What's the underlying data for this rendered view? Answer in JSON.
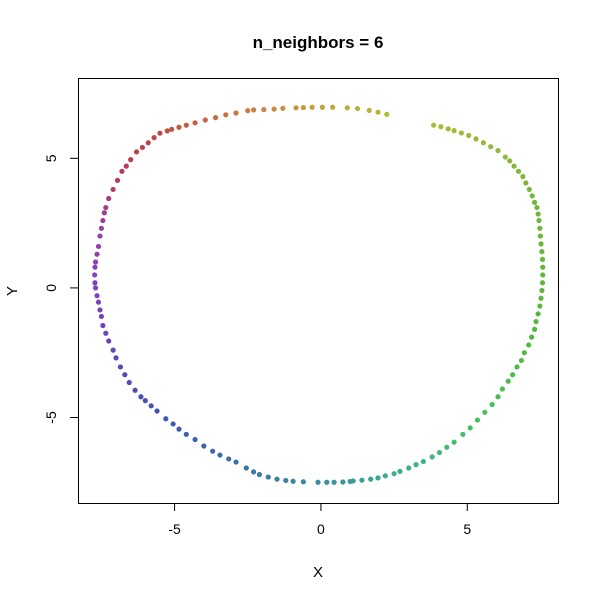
{
  "chart_data": {
    "type": "scatter",
    "title": "n_neighbors = 6",
    "xlabel": "X",
    "ylabel": "Y",
    "xlim": [
      -8.3,
      8.1
    ],
    "ylim": [
      -8.3,
      8.1
    ],
    "xticks": [
      -5,
      0,
      5
    ],
    "yticks": [
      -5,
      0,
      5
    ],
    "grid": false,
    "legend": "none",
    "color_mapping": "hue along the curve",
    "points": [
      {
        "x": 2.25,
        "y": 6.7,
        "color": "#b2bb34"
      },
      {
        "x": 1.95,
        "y": 6.78,
        "color": "#b5b636"
      },
      {
        "x": 1.65,
        "y": 6.85,
        "color": "#b8b337"
      },
      {
        "x": 1.25,
        "y": 6.92,
        "color": "#bbaf38"
      },
      {
        "x": 0.9,
        "y": 6.95,
        "color": "#beaa39"
      },
      {
        "x": 0.4,
        "y": 6.97,
        "color": "#c1a53a"
      },
      {
        "x": 0.05,
        "y": 6.97,
        "color": "#c3a13b"
      },
      {
        "x": -0.3,
        "y": 6.97,
        "color": "#c59c3c"
      },
      {
        "x": -0.6,
        "y": 6.96,
        "color": "#c7973d"
      },
      {
        "x": -0.85,
        "y": 6.95,
        "color": "#c8933e"
      },
      {
        "x": -1.3,
        "y": 6.93,
        "color": "#c98e3f"
      },
      {
        "x": -1.6,
        "y": 6.9,
        "color": "#ca8940"
      },
      {
        "x": -1.95,
        "y": 6.88,
        "color": "#cb8441"
      },
      {
        "x": -2.3,
        "y": 6.87,
        "color": "#cb7f42"
      },
      {
        "x": -2.5,
        "y": 6.84,
        "color": "#cb7a42"
      },
      {
        "x": -2.9,
        "y": 6.75,
        "color": "#ca7542"
      },
      {
        "x": -3.25,
        "y": 6.68,
        "color": "#c97043"
      },
      {
        "x": -3.6,
        "y": 6.57,
        "color": "#c76b43"
      },
      {
        "x": -3.95,
        "y": 6.48,
        "color": "#c66643"
      },
      {
        "x": -4.3,
        "y": 6.37,
        "color": "#c56143"
      },
      {
        "x": -4.6,
        "y": 6.28,
        "color": "#c45c43"
      },
      {
        "x": -4.85,
        "y": 6.2,
        "color": "#c35843"
      },
      {
        "x": -5.1,
        "y": 6.12,
        "color": "#c25444"
      },
      {
        "x": -5.25,
        "y": 6.06,
        "color": "#c15044"
      },
      {
        "x": -5.5,
        "y": 5.97,
        "color": "#c04c45"
      },
      {
        "x": -5.7,
        "y": 5.8,
        "color": "#bf4846"
      },
      {
        "x": -5.9,
        "y": 5.6,
        "color": "#be4547"
      },
      {
        "x": -6.1,
        "y": 5.42,
        "color": "#bd4249"
      },
      {
        "x": -6.3,
        "y": 5.25,
        "color": "#bc404b"
      },
      {
        "x": -6.5,
        "y": 4.95,
        "color": "#bb3e4f"
      },
      {
        "x": -6.65,
        "y": 4.7,
        "color": "#b93d53"
      },
      {
        "x": -6.8,
        "y": 4.5,
        "color": "#b83c58"
      },
      {
        "x": -6.95,
        "y": 4.15,
        "color": "#b53c5f"
      },
      {
        "x": -7.1,
        "y": 3.8,
        "color": "#b03d6a"
      },
      {
        "x": -7.25,
        "y": 3.45,
        "color": "#aa3e77"
      },
      {
        "x": -7.35,
        "y": 3.1,
        "color": "#a53f84"
      },
      {
        "x": -7.4,
        "y": 2.9,
        "color": "#a1408d"
      },
      {
        "x": -7.45,
        "y": 2.6,
        "color": "#9e4096"
      },
      {
        "x": -7.5,
        "y": 2.3,
        "color": "#9b409e"
      },
      {
        "x": -7.55,
        "y": 2.0,
        "color": "#9840a5"
      },
      {
        "x": -7.6,
        "y": 1.6,
        "color": "#9540ac"
      },
      {
        "x": -7.65,
        "y": 1.3,
        "color": "#9240b1"
      },
      {
        "x": -7.7,
        "y": 1.0,
        "color": "#8f40b5"
      },
      {
        "x": -7.72,
        "y": 0.8,
        "color": "#8c40b9"
      },
      {
        "x": -7.73,
        "y": 0.5,
        "color": "#8940bc"
      },
      {
        "x": -7.72,
        "y": 0.2,
        "color": "#8640be"
      },
      {
        "x": -7.7,
        "y": 0.0,
        "color": "#8340bf"
      },
      {
        "x": -7.65,
        "y": -0.3,
        "color": "#8041c0"
      },
      {
        "x": -7.6,
        "y": -0.55,
        "color": "#7c41c1"
      },
      {
        "x": -7.55,
        "y": -0.85,
        "color": "#7842c1"
      },
      {
        "x": -7.5,
        "y": -1.1,
        "color": "#7442c1"
      },
      {
        "x": -7.45,
        "y": -1.45,
        "color": "#7043c0"
      },
      {
        "x": -7.35,
        "y": -1.75,
        "color": "#6c44bf"
      },
      {
        "x": -7.25,
        "y": -2.05,
        "color": "#6845be"
      },
      {
        "x": -7.1,
        "y": -2.4,
        "color": "#6446bd"
      },
      {
        "x": -7.0,
        "y": -2.7,
        "color": "#6047bc"
      },
      {
        "x": -6.85,
        "y": -3.05,
        "color": "#5c48bb"
      },
      {
        "x": -6.7,
        "y": -3.35,
        "color": "#5849ba"
      },
      {
        "x": -6.55,
        "y": -3.65,
        "color": "#544bb9"
      },
      {
        "x": -6.35,
        "y": -3.95,
        "color": "#504db8"
      },
      {
        "x": -6.15,
        "y": -4.2,
        "color": "#4c4fb7"
      },
      {
        "x": -6.0,
        "y": -4.35,
        "color": "#4951b6"
      },
      {
        "x": -5.8,
        "y": -4.55,
        "color": "#4653b5"
      },
      {
        "x": -5.6,
        "y": -4.75,
        "color": "#4355b4"
      },
      {
        "x": -5.3,
        "y": -5.05,
        "color": "#4158b3"
      },
      {
        "x": -5.05,
        "y": -5.25,
        "color": "#3f5bb2"
      },
      {
        "x": -4.85,
        "y": -5.45,
        "color": "#3e5db1"
      },
      {
        "x": -4.6,
        "y": -5.65,
        "color": "#3d60b0"
      },
      {
        "x": -4.3,
        "y": -5.85,
        "color": "#3c63af"
      },
      {
        "x": -4.0,
        "y": -6.1,
        "color": "#3b66ae"
      },
      {
        "x": -3.7,
        "y": -6.3,
        "color": "#3b69ad"
      },
      {
        "x": -3.45,
        "y": -6.45,
        "color": "#3a6cac"
      },
      {
        "x": -3.15,
        "y": -6.6,
        "color": "#3a6fab"
      },
      {
        "x": -2.9,
        "y": -6.72,
        "color": "#3a72aa"
      },
      {
        "x": -2.55,
        "y": -6.95,
        "color": "#3a75a9"
      },
      {
        "x": -2.3,
        "y": -7.1,
        "color": "#3a78a8"
      },
      {
        "x": -2.1,
        "y": -7.2,
        "color": "#3a7ba7"
      },
      {
        "x": -1.8,
        "y": -7.3,
        "color": "#3a7ea6"
      },
      {
        "x": -1.5,
        "y": -7.38,
        "color": "#3a81a5"
      },
      {
        "x": -1.2,
        "y": -7.43,
        "color": "#3a84a4"
      },
      {
        "x": -0.95,
        "y": -7.46,
        "color": "#3a87a3"
      },
      {
        "x": -0.6,
        "y": -7.48,
        "color": "#3a8aa2"
      },
      {
        "x": -0.1,
        "y": -7.5,
        "color": "#3a8da1"
      },
      {
        "x": 0.2,
        "y": -7.5,
        "color": "#3a90a0"
      },
      {
        "x": 0.45,
        "y": -7.5,
        "color": "#3a939f"
      },
      {
        "x": 0.75,
        "y": -7.49,
        "color": "#3a969e"
      },
      {
        "x": 1.0,
        "y": -7.47,
        "color": "#3a999d"
      },
      {
        "x": 1.1,
        "y": -7.45,
        "color": "#3a9c9b"
      },
      {
        "x": 1.4,
        "y": -7.42,
        "color": "#3a9f99"
      },
      {
        "x": 1.7,
        "y": -7.38,
        "color": "#3aa297"
      },
      {
        "x": 1.95,
        "y": -7.33,
        "color": "#3ba594"
      },
      {
        "x": 2.2,
        "y": -7.25,
        "color": "#3ba891"
      },
      {
        "x": 2.5,
        "y": -7.17,
        "color": "#3cab8e"
      },
      {
        "x": 2.7,
        "y": -7.08,
        "color": "#3dae8a"
      },
      {
        "x": 3.0,
        "y": -6.95,
        "color": "#3eb186"
      },
      {
        "x": 3.25,
        "y": -6.82,
        "color": "#3fb482"
      },
      {
        "x": 3.5,
        "y": -6.7,
        "color": "#40b67e"
      },
      {
        "x": 3.8,
        "y": -6.52,
        "color": "#41b87a"
      },
      {
        "x": 4.05,
        "y": -6.35,
        "color": "#42ba76"
      },
      {
        "x": 4.3,
        "y": -6.15,
        "color": "#43bc72"
      },
      {
        "x": 4.55,
        "y": -5.95,
        "color": "#44bd6e"
      },
      {
        "x": 4.85,
        "y": -5.65,
        "color": "#45be6a"
      },
      {
        "x": 5.1,
        "y": -5.4,
        "color": "#46be66"
      },
      {
        "x": 5.35,
        "y": -5.1,
        "color": "#47be62"
      },
      {
        "x": 5.6,
        "y": -4.8,
        "color": "#48be5e"
      },
      {
        "x": 5.85,
        "y": -4.5,
        "color": "#49be5a"
      },
      {
        "x": 6.05,
        "y": -4.2,
        "color": "#4abd56"
      },
      {
        "x": 6.2,
        "y": -3.9,
        "color": "#4bbd52"
      },
      {
        "x": 6.4,
        "y": -3.6,
        "color": "#4cbc4f"
      },
      {
        "x": 6.55,
        "y": -3.35,
        "color": "#4dbc4c"
      },
      {
        "x": 6.7,
        "y": -3.05,
        "color": "#4ebb49"
      },
      {
        "x": 6.85,
        "y": -2.8,
        "color": "#4fbb46"
      },
      {
        "x": 6.95,
        "y": -2.5,
        "color": "#50ba44"
      },
      {
        "x": 7.1,
        "y": -2.2,
        "color": "#51ba42"
      },
      {
        "x": 7.2,
        "y": -1.9,
        "color": "#52b940"
      },
      {
        "x": 7.3,
        "y": -1.6,
        "color": "#54b93f"
      },
      {
        "x": 7.35,
        "y": -1.3,
        "color": "#56b83e"
      },
      {
        "x": 7.42,
        "y": -1.0,
        "color": "#58b83d"
      },
      {
        "x": 7.48,
        "y": -0.7,
        "color": "#5ab83c"
      },
      {
        "x": 7.52,
        "y": -0.4,
        "color": "#5cb73c"
      },
      {
        "x": 7.55,
        "y": -0.1,
        "color": "#5eb73c"
      },
      {
        "x": 7.57,
        "y": 0.2,
        "color": "#60b73c"
      },
      {
        "x": 7.58,
        "y": 0.5,
        "color": "#62b63c"
      },
      {
        "x": 7.58,
        "y": 0.8,
        "color": "#64b63c"
      },
      {
        "x": 7.57,
        "y": 1.1,
        "color": "#66b63c"
      },
      {
        "x": 7.55,
        "y": 1.4,
        "color": "#68b63c"
      },
      {
        "x": 7.52,
        "y": 1.7,
        "color": "#6ab63c"
      },
      {
        "x": 7.5,
        "y": 2.0,
        "color": "#6cb63c"
      },
      {
        "x": 7.48,
        "y": 2.3,
        "color": "#6eb63c"
      },
      {
        "x": 7.45,
        "y": 2.6,
        "color": "#70b63c"
      },
      {
        "x": 7.42,
        "y": 2.85,
        "color": "#72b63c"
      },
      {
        "x": 7.38,
        "y": 3.1,
        "color": "#74b63c"
      },
      {
        "x": 7.3,
        "y": 3.3,
        "color": "#76b63c"
      },
      {
        "x": 7.22,
        "y": 3.55,
        "color": "#78b63c"
      },
      {
        "x": 7.12,
        "y": 3.8,
        "color": "#7ab63c"
      },
      {
        "x": 7.0,
        "y": 4.05,
        "color": "#7db63c"
      },
      {
        "x": 6.9,
        "y": 4.3,
        "color": "#80b63c"
      },
      {
        "x": 6.75,
        "y": 4.5,
        "color": "#83b73c"
      },
      {
        "x": 6.6,
        "y": 4.7,
        "color": "#86b73c"
      },
      {
        "x": 6.45,
        "y": 4.9,
        "color": "#89b73c"
      },
      {
        "x": 6.3,
        "y": 5.05,
        "color": "#8cb83b"
      },
      {
        "x": 6.05,
        "y": 5.3,
        "color": "#8fb83b"
      },
      {
        "x": 5.8,
        "y": 5.45,
        "color": "#92b93a"
      },
      {
        "x": 5.55,
        "y": 5.6,
        "color": "#95b939"
      },
      {
        "x": 5.3,
        "y": 5.75,
        "color": "#98ba38"
      },
      {
        "x": 5.05,
        "y": 5.88,
        "color": "#9bba37"
      },
      {
        "x": 4.8,
        "y": 5.98,
        "color": "#9ebb36"
      },
      {
        "x": 4.55,
        "y": 6.07,
        "color": "#a1bb35"
      },
      {
        "x": 4.35,
        "y": 6.14,
        "color": "#a4bc35"
      },
      {
        "x": 4.1,
        "y": 6.22,
        "color": "#a7bc34"
      },
      {
        "x": 3.85,
        "y": 6.28,
        "color": "#aabc34"
      }
    ]
  }
}
